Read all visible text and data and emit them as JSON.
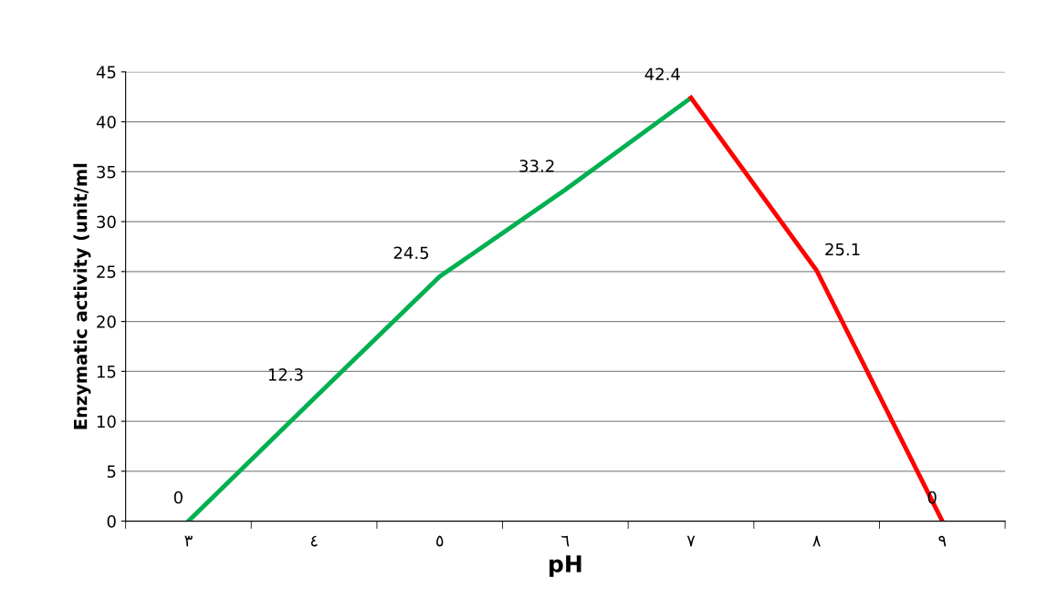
{
  "chart_data": {
    "type": "line",
    "xlabel": "pH",
    "ylabel": "Enzymatic activity (unit/ml",
    "categories": [
      "٣",
      "٤",
      "٥",
      "٦",
      "٧",
      "٨",
      "٩"
    ],
    "series": [
      {
        "color": "#00b050",
        "values": [
          0,
          12.3,
          24.5,
          33.2,
          42.4,
          null,
          null
        ],
        "value_labels": [
          "0",
          "12.3",
          "24.5",
          "33.2",
          "42.4",
          null,
          null
        ]
      },
      {
        "color": "#ff0000",
        "values": [
          null,
          null,
          null,
          null,
          42.4,
          25.1,
          0
        ],
        "value_labels": [
          null,
          null,
          null,
          null,
          null,
          "25.1",
          "0"
        ]
      }
    ],
    "ylim": [
      0,
      45
    ],
    "yticks": [
      0,
      5,
      10,
      15,
      20,
      25,
      30,
      35,
      40,
      45
    ],
    "grid": "y",
    "legend": false,
    "marker": "none",
    "line_style": "solid"
  }
}
